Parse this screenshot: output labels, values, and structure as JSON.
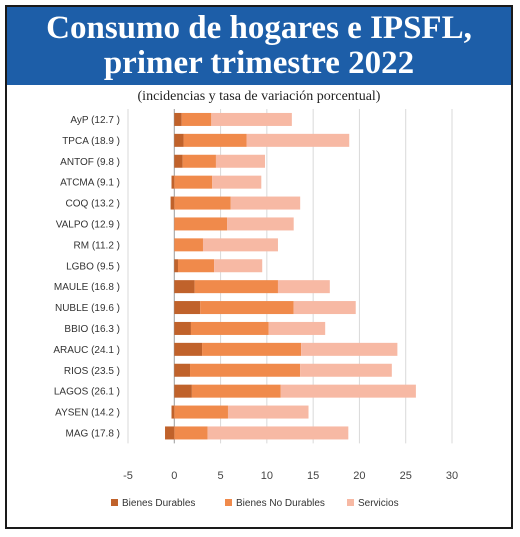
{
  "header": {
    "title_line1": "Consumo de hogares e IPSFL,",
    "title_line2": "primer trimestre 2022",
    "subtitle": "(incidencias y tasa de variación porcentual)"
  },
  "colors": {
    "header_bg": "#1d5ea8",
    "bienes_durables": "#c0622b",
    "bienes_no_durables": "#f08a4b",
    "servicios": "#f7b9a4"
  },
  "chart_data": {
    "type": "bar",
    "orientation": "horizontal",
    "stacked": true,
    "title": "Consumo de hogares e IPSFL, primer trimestre 2022",
    "subtitle": "(incidencias y tasa de variación porcentual)",
    "categories": [
      "AyP (12.7 )",
      "TPCA (18.9 )",
      "ANTOF (9.8 )",
      "ATCMA (9.1 )",
      "COQ (13.2 )",
      "VALPO (12.9 )",
      "RM (11.2 )",
      "LGBO (9.5 )",
      "MAULE (16.8 )",
      "NUBLE (19.6 )",
      "BBIO (16.3 )",
      "ARAUC (24.1 )",
      "RIOS (23.5 )",
      "LAGOS (26.1 )",
      "AYSEN (14.2 )",
      "MAG (17.8 )"
    ],
    "series": [
      {
        "name": "Bienes Durables",
        "values": [
          0.8,
          1.0,
          0.9,
          -0.3,
          -0.4,
          0.0,
          0.0,
          0.4,
          2.2,
          2.8,
          1.8,
          3.0,
          1.7,
          1.9,
          -0.3,
          -1.0
        ]
      },
      {
        "name": "Bienes No Durables",
        "values": [
          3.2,
          6.8,
          3.6,
          4.1,
          6.1,
          5.7,
          3.1,
          3.9,
          9.0,
          10.1,
          8.4,
          10.7,
          11.9,
          9.6,
          5.8,
          3.6
        ]
      },
      {
        "name": "Servicios",
        "values": [
          8.7,
          11.1,
          5.3,
          5.3,
          7.5,
          7.2,
          8.1,
          5.2,
          5.6,
          6.7,
          6.1,
          10.4,
          9.9,
          14.6,
          8.7,
          15.2
        ]
      }
    ],
    "xlim": [
      -5,
      30
    ],
    "xticks": [
      "-5",
      "0",
      "5",
      "10",
      "15",
      "20",
      "25",
      "30"
    ],
    "xtick_values": [
      -5,
      0,
      5,
      10,
      15,
      20,
      25,
      30
    ],
    "grid": true,
    "legend_position": "bottom"
  }
}
